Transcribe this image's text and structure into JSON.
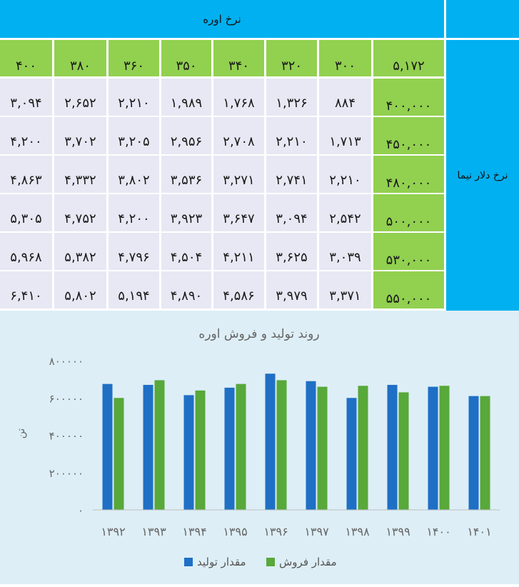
{
  "table": {
    "top_header": "نرخ اوره",
    "side_header": "نرخ دلار نیما",
    "corner_value": "۵,۱۷۲",
    "columns": [
      "۴۰۰",
      "۳۸۰",
      "۳۶۰",
      "۳۵۰",
      "۳۴۰",
      "۳۲۰",
      "۳۰۰"
    ],
    "rows": [
      {
        "key": "۴۰۰,۰۰۰",
        "cells": [
          "۳,۰۹۴",
          "۲,۶۵۲",
          "۲,۲۱۰",
          "۱,۹۸۹",
          "۱,۷۶۸",
          "۱,۳۲۶",
          "۸۸۴"
        ]
      },
      {
        "key": "۴۵۰,۰۰۰",
        "cells": [
          "۴,۲۰۰",
          "۳,۷۰۲",
          "۳,۲۰۵",
          "۲,۹۵۶",
          "۲,۷۰۸",
          "۲,۲۱۰",
          "۱,۷۱۳"
        ]
      },
      {
        "key": "۴۸۰,۰۰۰",
        "cells": [
          "۴,۸۶۳",
          "۴,۳۳۲",
          "۳,۸۰۲",
          "۳,۵۳۶",
          "۳,۲۷۱",
          "۲,۷۴۱",
          "۲,۲۱۰"
        ]
      },
      {
        "key": "۵۰۰,۰۰۰",
        "cells": [
          "۵,۳۰۵",
          "۴,۷۵۲",
          "۴,۲۰۰",
          "۳,۹۲۳",
          "۳,۶۴۷",
          "۳,۰۹۴",
          "۲,۵۴۲"
        ]
      },
      {
        "key": "۵۳۰,۰۰۰",
        "cells": [
          "۵,۹۶۸",
          "۵,۳۸۲",
          "۴,۷۹۶",
          "۴,۵۰۴",
          "۴,۲۱۱",
          "۳,۶۲۵",
          "۳,۰۳۹"
        ]
      },
      {
        "key": "۵۵۰,۰۰۰",
        "cells": [
          "۶,۴۱۰",
          "۵,۸۰۲",
          "۵,۱۹۴",
          "۴,۸۹۰",
          "۴,۵۸۶",
          "۳,۹۷۹",
          "۳,۳۷۱"
        ]
      }
    ]
  },
  "chart_data": {
    "type": "bar",
    "title": "روند تولید و فروش اوره",
    "ylabel": "تن",
    "xlabel": "",
    "categories": [
      "۱۳۹۲",
      "۱۳۹۳",
      "۱۳۹۴",
      "۱۳۹۵",
      "۱۳۹۶",
      "۱۳۹۷",
      "۱۳۹۸",
      "۱۳۹۹",
      "۱۴۰۰",
      "۱۴۰۱"
    ],
    "y_ticks": [
      "۰",
      "۲۰۰۰۰۰",
      "۴۰۰۰۰۰",
      "۶۰۰۰۰۰",
      "۸۰۰۰۰۰"
    ],
    "ylim": [
      0,
      800000
    ],
    "series": [
      {
        "name": "مقدار تولید",
        "color": "#1f6fc5",
        "values": [
          675000,
          670000,
          615000,
          655000,
          730000,
          690000,
          600000,
          670000,
          660000,
          610000
        ]
      },
      {
        "name": "مقدار فروش",
        "color": "#58a83a",
        "values": [
          600000,
          695000,
          640000,
          675000,
          695000,
          660000,
          665000,
          630000,
          665000,
          610000
        ]
      }
    ],
    "grid": false,
    "legend_position": "bottom"
  }
}
